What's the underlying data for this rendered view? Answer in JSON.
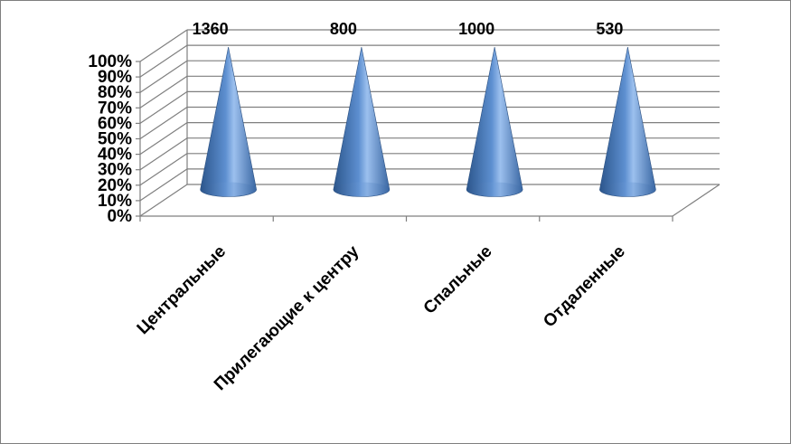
{
  "chart_data": {
    "type": "bar",
    "shape": "cone",
    "stacking": "100% stacked",
    "categories": [
      "Центральные",
      "Прилегающие к центру",
      "Спальные",
      "Отдаленные"
    ],
    "values": [
      1360,
      800,
      1000,
      530
    ],
    "data_labels": [
      "1360",
      "800",
      "1000",
      "530"
    ],
    "y_ticks": [
      "0%",
      "10%",
      "20%",
      "30%",
      "40%",
      "50%",
      "60%",
      "70%",
      "80%",
      "90%",
      "100%"
    ],
    "ylim": [
      0,
      100
    ],
    "grid": true,
    "legend": "none",
    "colors": {
      "cone_dark": "#2e5a93",
      "cone_mid": "#4f81bd",
      "cone_light": "#9cc0ee",
      "grid": "#7f7f7f"
    }
  }
}
